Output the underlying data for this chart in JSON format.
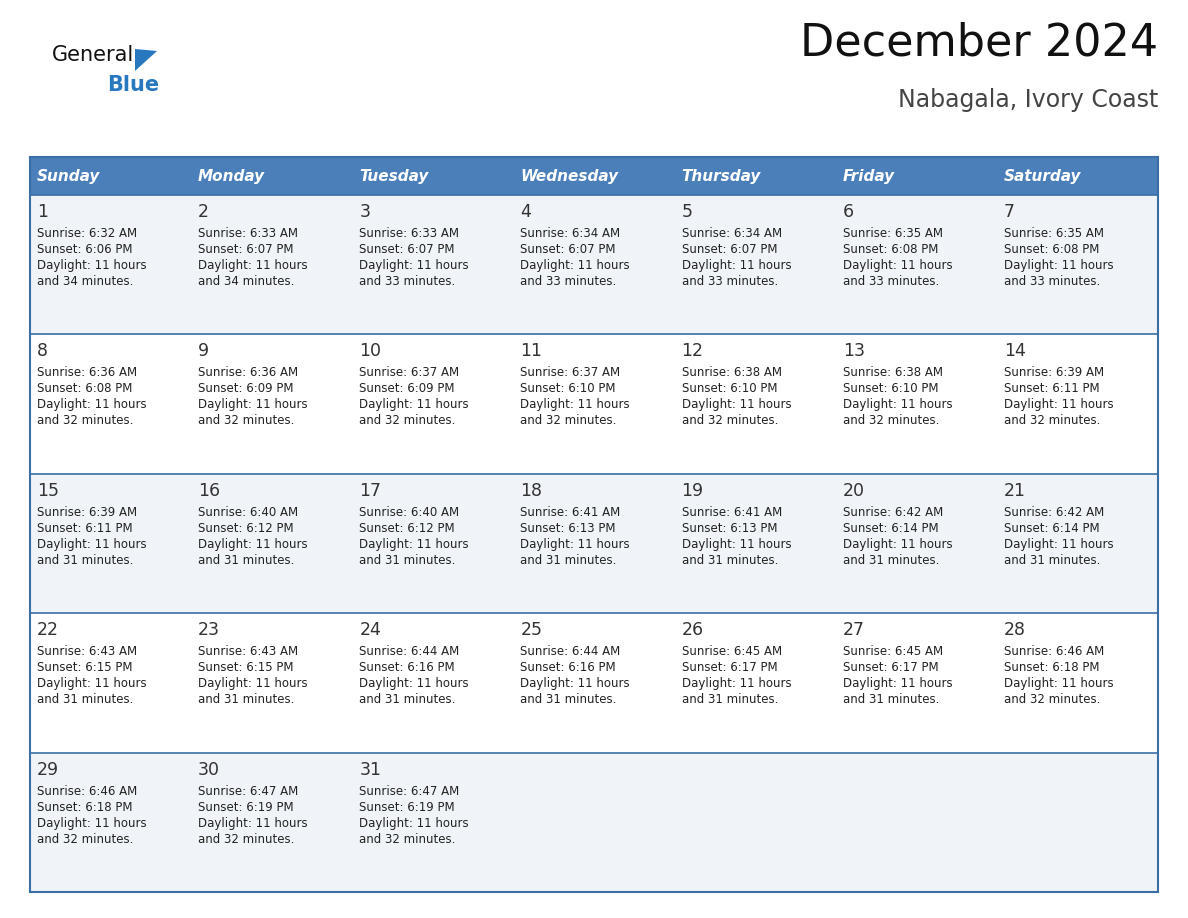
{
  "title": "December 2024",
  "subtitle": "Nabagala, Ivory Coast",
  "header_bg_color": "#4a7fba",
  "header_text_color": "#FFFFFF",
  "header_font_size": 11,
  "day_names": [
    "Sunday",
    "Monday",
    "Tuesday",
    "Wednesday",
    "Thursday",
    "Friday",
    "Saturday"
  ],
  "title_font_size": 32,
  "subtitle_font_size": 17,
  "cell_text_color": "#222222",
  "day_number_color": "#333333",
  "row0_color": "#F0F4F8",
  "row1_color": "#FFFFFF",
  "grid_color": "#3a6ea5",
  "logo_general_color": "#111111",
  "logo_blue_color": "#2878c0",
  "days": [
    {
      "day": 1,
      "col": 0,
      "row": 0,
      "sunrise": "6:32 AM",
      "sunset": "6:06 PM",
      "daylight_h": "11 hours",
      "daylight_m": "and 34 minutes."
    },
    {
      "day": 2,
      "col": 1,
      "row": 0,
      "sunrise": "6:33 AM",
      "sunset": "6:07 PM",
      "daylight_h": "11 hours",
      "daylight_m": "and 34 minutes."
    },
    {
      "day": 3,
      "col": 2,
      "row": 0,
      "sunrise": "6:33 AM",
      "sunset": "6:07 PM",
      "daylight_h": "11 hours",
      "daylight_m": "and 33 minutes."
    },
    {
      "day": 4,
      "col": 3,
      "row": 0,
      "sunrise": "6:34 AM",
      "sunset": "6:07 PM",
      "daylight_h": "11 hours",
      "daylight_m": "and 33 minutes."
    },
    {
      "day": 5,
      "col": 4,
      "row": 0,
      "sunrise": "6:34 AM",
      "sunset": "6:07 PM",
      "daylight_h": "11 hours",
      "daylight_m": "and 33 minutes."
    },
    {
      "day": 6,
      "col": 5,
      "row": 0,
      "sunrise": "6:35 AM",
      "sunset": "6:08 PM",
      "daylight_h": "11 hours",
      "daylight_m": "and 33 minutes."
    },
    {
      "day": 7,
      "col": 6,
      "row": 0,
      "sunrise": "6:35 AM",
      "sunset": "6:08 PM",
      "daylight_h": "11 hours",
      "daylight_m": "and 33 minutes."
    },
    {
      "day": 8,
      "col": 0,
      "row": 1,
      "sunrise": "6:36 AM",
      "sunset": "6:08 PM",
      "daylight_h": "11 hours",
      "daylight_m": "and 32 minutes."
    },
    {
      "day": 9,
      "col": 1,
      "row": 1,
      "sunrise": "6:36 AM",
      "sunset": "6:09 PM",
      "daylight_h": "11 hours",
      "daylight_m": "and 32 minutes."
    },
    {
      "day": 10,
      "col": 2,
      "row": 1,
      "sunrise": "6:37 AM",
      "sunset": "6:09 PM",
      "daylight_h": "11 hours",
      "daylight_m": "and 32 minutes."
    },
    {
      "day": 11,
      "col": 3,
      "row": 1,
      "sunrise": "6:37 AM",
      "sunset": "6:10 PM",
      "daylight_h": "11 hours",
      "daylight_m": "and 32 minutes."
    },
    {
      "day": 12,
      "col": 4,
      "row": 1,
      "sunrise": "6:38 AM",
      "sunset": "6:10 PM",
      "daylight_h": "11 hours",
      "daylight_m": "and 32 minutes."
    },
    {
      "day": 13,
      "col": 5,
      "row": 1,
      "sunrise": "6:38 AM",
      "sunset": "6:10 PM",
      "daylight_h": "11 hours",
      "daylight_m": "and 32 minutes."
    },
    {
      "day": 14,
      "col": 6,
      "row": 1,
      "sunrise": "6:39 AM",
      "sunset": "6:11 PM",
      "daylight_h": "11 hours",
      "daylight_m": "and 32 minutes."
    },
    {
      "day": 15,
      "col": 0,
      "row": 2,
      "sunrise": "6:39 AM",
      "sunset": "6:11 PM",
      "daylight_h": "11 hours",
      "daylight_m": "and 31 minutes."
    },
    {
      "day": 16,
      "col": 1,
      "row": 2,
      "sunrise": "6:40 AM",
      "sunset": "6:12 PM",
      "daylight_h": "11 hours",
      "daylight_m": "and 31 minutes."
    },
    {
      "day": 17,
      "col": 2,
      "row": 2,
      "sunrise": "6:40 AM",
      "sunset": "6:12 PM",
      "daylight_h": "11 hours",
      "daylight_m": "and 31 minutes."
    },
    {
      "day": 18,
      "col": 3,
      "row": 2,
      "sunrise": "6:41 AM",
      "sunset": "6:13 PM",
      "daylight_h": "11 hours",
      "daylight_m": "and 31 minutes."
    },
    {
      "day": 19,
      "col": 4,
      "row": 2,
      "sunrise": "6:41 AM",
      "sunset": "6:13 PM",
      "daylight_h": "11 hours",
      "daylight_m": "and 31 minutes."
    },
    {
      "day": 20,
      "col": 5,
      "row": 2,
      "sunrise": "6:42 AM",
      "sunset": "6:14 PM",
      "daylight_h": "11 hours",
      "daylight_m": "and 31 minutes."
    },
    {
      "day": 21,
      "col": 6,
      "row": 2,
      "sunrise": "6:42 AM",
      "sunset": "6:14 PM",
      "daylight_h": "11 hours",
      "daylight_m": "and 31 minutes."
    },
    {
      "day": 22,
      "col": 0,
      "row": 3,
      "sunrise": "6:43 AM",
      "sunset": "6:15 PM",
      "daylight_h": "11 hours",
      "daylight_m": "and 31 minutes."
    },
    {
      "day": 23,
      "col": 1,
      "row": 3,
      "sunrise": "6:43 AM",
      "sunset": "6:15 PM",
      "daylight_h": "11 hours",
      "daylight_m": "and 31 minutes."
    },
    {
      "day": 24,
      "col": 2,
      "row": 3,
      "sunrise": "6:44 AM",
      "sunset": "6:16 PM",
      "daylight_h": "11 hours",
      "daylight_m": "and 31 minutes."
    },
    {
      "day": 25,
      "col": 3,
      "row": 3,
      "sunrise": "6:44 AM",
      "sunset": "6:16 PM",
      "daylight_h": "11 hours",
      "daylight_m": "and 31 minutes."
    },
    {
      "day": 26,
      "col": 4,
      "row": 3,
      "sunrise": "6:45 AM",
      "sunset": "6:17 PM",
      "daylight_h": "11 hours",
      "daylight_m": "and 31 minutes."
    },
    {
      "day": 27,
      "col": 5,
      "row": 3,
      "sunrise": "6:45 AM",
      "sunset": "6:17 PM",
      "daylight_h": "11 hours",
      "daylight_m": "and 31 minutes."
    },
    {
      "day": 28,
      "col": 6,
      "row": 3,
      "sunrise": "6:46 AM",
      "sunset": "6:18 PM",
      "daylight_h": "11 hours",
      "daylight_m": "and 32 minutes."
    },
    {
      "day": 29,
      "col": 0,
      "row": 4,
      "sunrise": "6:46 AM",
      "sunset": "6:18 PM",
      "daylight_h": "11 hours",
      "daylight_m": "and 32 minutes."
    },
    {
      "day": 30,
      "col": 1,
      "row": 4,
      "sunrise": "6:47 AM",
      "sunset": "6:19 PM",
      "daylight_h": "11 hours",
      "daylight_m": "and 32 minutes."
    },
    {
      "day": 31,
      "col": 2,
      "row": 4,
      "sunrise": "6:47 AM",
      "sunset": "6:19 PM",
      "daylight_h": "11 hours",
      "daylight_m": "and 32 minutes."
    }
  ]
}
